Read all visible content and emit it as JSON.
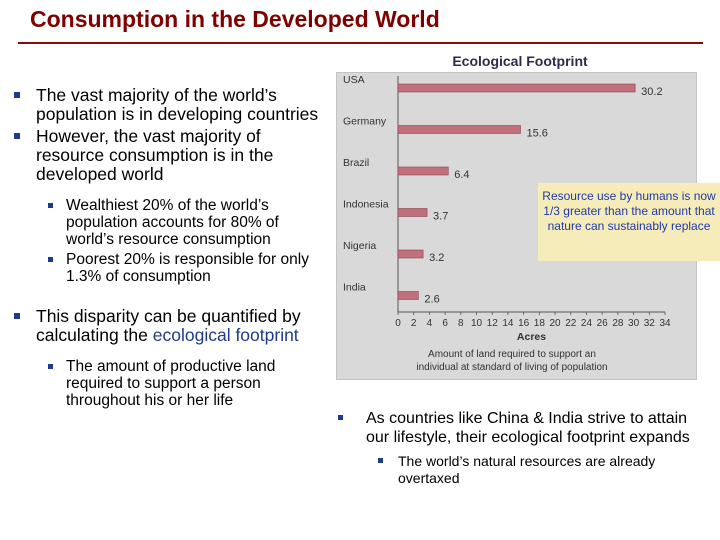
{
  "slide": {
    "title": "Consumption in the Developed World"
  },
  "left": {
    "b1": "The vast majority of the world’s population is in developing countries",
    "b2": "However, the vast majority of resource consumption is in the developed world",
    "sub1": "Wealthiest 20% of the world’s population accounts for 80% of world’s resource consumption",
    "sub2": "Poorest 20% is responsible for only 1.3% of consumption",
    "b3_pre": "This disparity can be quantified by calculating the ",
    "b3_term": "ecological footprint",
    "sub3": "The amount of productive land required to support a person throughout his or her life"
  },
  "right": {
    "b1": "As countries like China & India strive to attain our lifestyle, their ecological footprint expands",
    "sub1": "The world’s natural resources are already overtaxed"
  },
  "callout": {
    "text": "Resource use by humans is now 1/3 greater than the amount that nature can sustainably replace"
  },
  "chart_data": {
    "type": "bar",
    "orientation": "horizontal",
    "title": "Ecological Footprint",
    "categories": [
      "USA",
      "Germany",
      "Brazil",
      "Indonesia",
      "Nigeria",
      "India"
    ],
    "values": [
      30.2,
      15.6,
      6.4,
      3.7,
      3.2,
      2.6
    ],
    "value_labels": [
      "30.2",
      "15.6",
      "6.4",
      "3.7",
      "3.2",
      "2.6"
    ],
    "xlabel": "Acres",
    "caption": "Amount of land required to support an individual at standard of living of population",
    "xlim": [
      0,
      34
    ],
    "xticks": [
      "0",
      "2",
      "4",
      "6",
      "8",
      "10",
      "12",
      "14",
      "16",
      "18",
      "20",
      "22",
      "24",
      "26",
      "28",
      "30",
      "32",
      "34"
    ],
    "bar_color": "#c0707a",
    "background": "#d9d9d9"
  }
}
